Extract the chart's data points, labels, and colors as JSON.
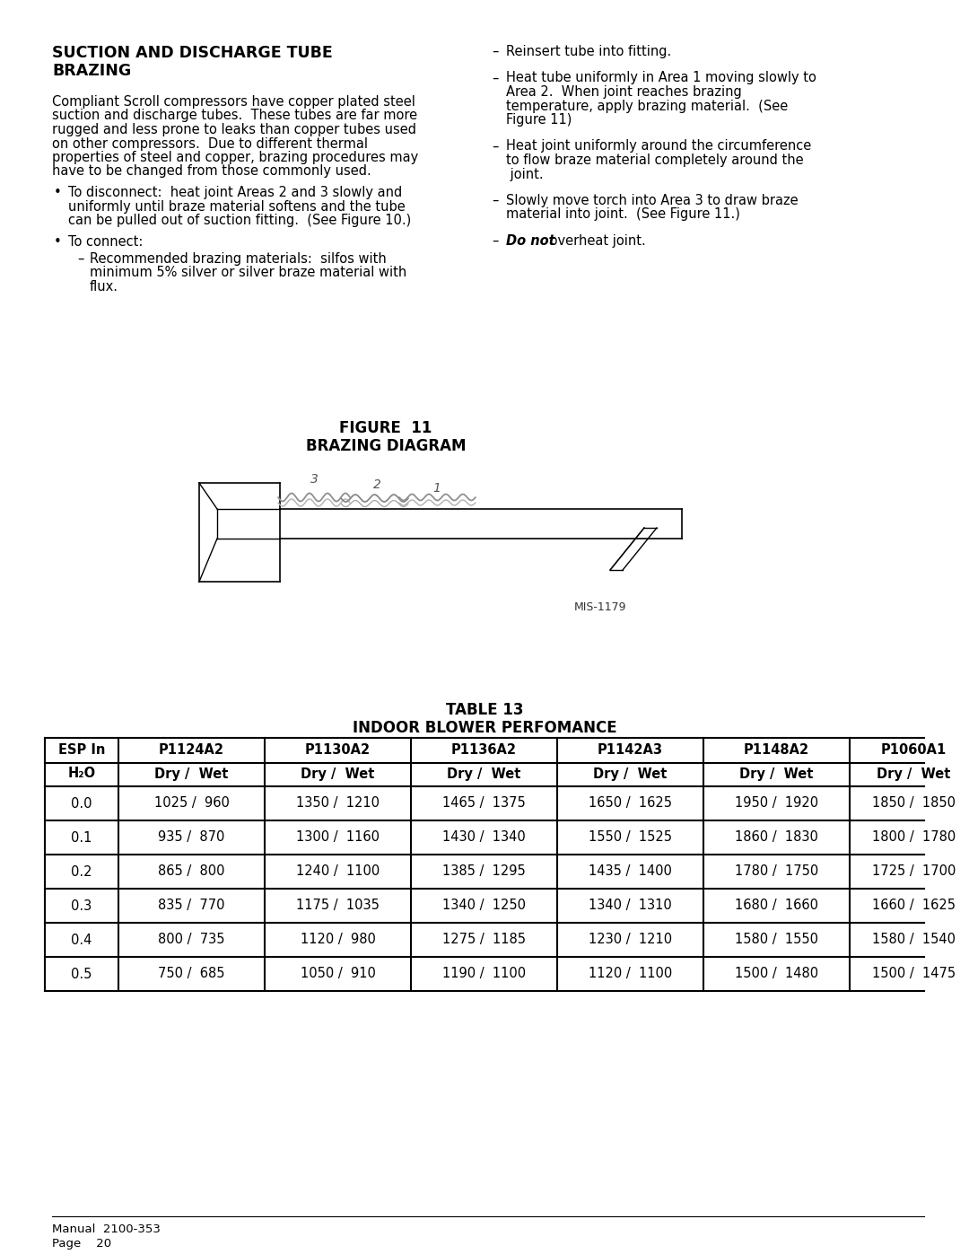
{
  "title_line1": "SUCTION AND DISCHARGE TUBE",
  "title_line2": "BRAZING",
  "body_text_left": [
    "Compliant Scroll compressors have copper plated steel",
    "suction and discharge tubes.  These tubes are far more",
    "rugged and less prone to leaks than copper tubes used",
    "on other compressors.  Due to different thermal",
    "properties of steel and copper, brazing procedures may",
    "have to be changed from those commonly used."
  ],
  "bullet1_line1": "To disconnect:  heat joint Areas 2 and 3 slowly and",
  "bullet1_line2": "uniformly until braze material softens and the tube",
  "bullet1_line3": "can be pulled out of suction fitting.  (See Figure 10.)",
  "bullet2": "To connect:",
  "sub_bullet1_line1": "Recommended brazing materials:  silfos with",
  "sub_bullet1_line2": "minimum 5% silver or silver braze material with",
  "sub_bullet1_line3": "flux.",
  "right_col_items": [
    [
      "Reinsert tube into fitting."
    ],
    [
      "Heat tube uniformly in Area 1 moving slowly to",
      "Area 2.  When joint reaches brazing",
      "temperature, apply brazing material.  (See",
      "Figure 11)"
    ],
    [
      "Heat joint uniformly around the circumference",
      "to flow braze material completely around the",
      " joint."
    ],
    [
      "Slowly move torch into Area 3 to draw braze",
      "material into joint.  (See Figure 11.)"
    ],
    [
      "overheat joint."
    ]
  ],
  "figure_title_line1": "FIGURE  11",
  "figure_title_line2": "BRAZING DIAGRAM",
  "mis_label": "MIS-1179",
  "table_title_line1": "TABLE 13",
  "table_title_line2": "INDOOR BLOWER PERFOMANCE",
  "table_headers": [
    "P1124A2",
    "P1130A2",
    "P1136A2",
    "P1142A3",
    "P1148A2",
    "P1060A1"
  ],
  "table_subheaders": [
    "Dry /  Wet",
    "Dry /  Wet",
    "Dry /  Wet",
    "Dry /  Wet",
    "Dry /  Wet",
    "Dry /  Wet"
  ],
  "table_esp": [
    "0.0",
    "0.1",
    "0.2",
    "0.3",
    "0.4",
    "0.5"
  ],
  "table_data": [
    [
      "1025 /  960",
      "1350 /  1210",
      "1465 /  1375",
      "1650 /  1625",
      "1950 /  1920",
      "1850 /  1850"
    ],
    [
      "935 /  870",
      "1300 /  1160",
      "1430 /  1340",
      "1550 /  1525",
      "1860 /  1830",
      "1800 /  1780"
    ],
    [
      "865 /  800",
      "1240 /  1100",
      "1385 /  1295",
      "1435 /  1400",
      "1780 /  1750",
      "1725 /  1700"
    ],
    [
      "835 /  770",
      "1175 /  1035",
      "1340 /  1250",
      "1340 /  1310",
      "1680 /  1660",
      "1660 /  1625"
    ],
    [
      "800 /  735",
      "1120 /  980",
      "1275 /  1185",
      "1230 /  1210",
      "1580 /  1550",
      "1580 /  1540"
    ],
    [
      "750 /  685",
      "1050 /  910",
      "1190 /  1100",
      "1120 /  1100",
      "1500 /  1480",
      "1500 /  1475"
    ]
  ],
  "footer_line1": "Manual  2100-353",
  "footer_line2": "Page    20"
}
